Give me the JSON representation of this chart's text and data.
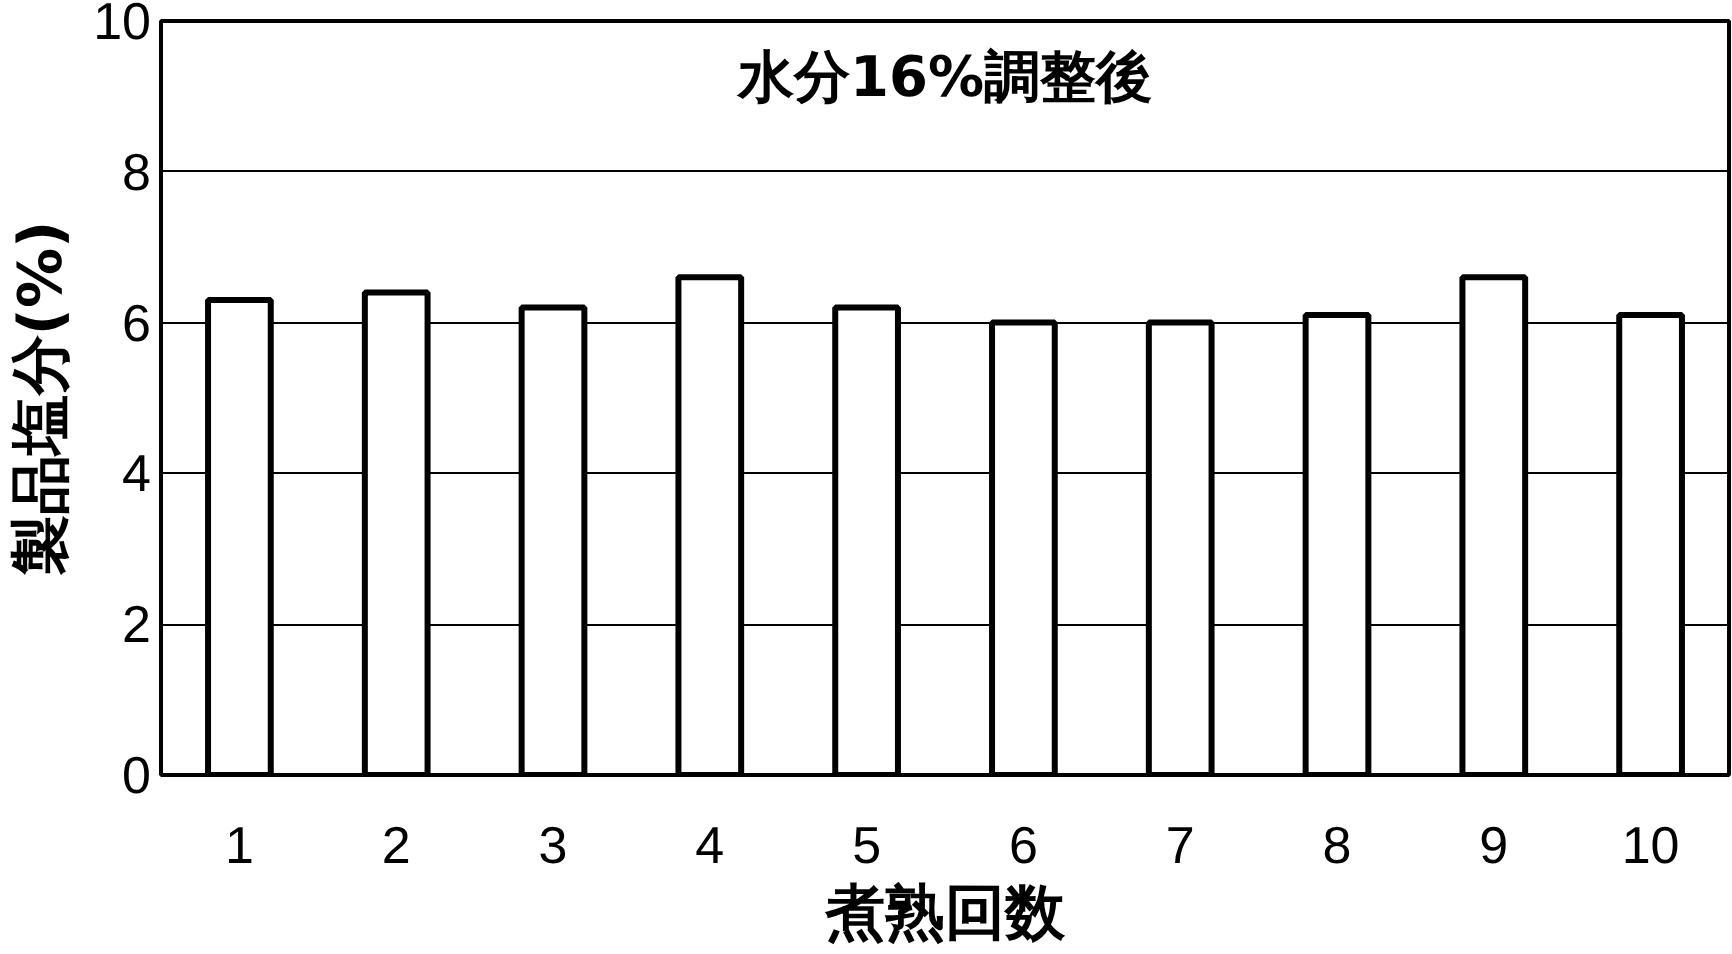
{
  "chart_data": {
    "type": "bar",
    "xlabel": "煮熟回数",
    "ylabel": "製品塩分(%)",
    "annotations": [
      "水分16%調整後"
    ],
    "categories": [
      "1",
      "2",
      "3",
      "4",
      "5",
      "6",
      "7",
      "8",
      "9",
      "10"
    ],
    "series": [
      {
        "color": "#ffffff",
        "values": [
          6.3,
          6.4,
          6.2,
          6.6,
          6.2,
          6.0,
          6.0,
          6.1,
          6.6,
          6.1
        ]
      }
    ],
    "ylim": [
      0,
      10
    ],
    "yticks": [
      0,
      2,
      4,
      6,
      8,
      10
    ],
    "grid": "y"
  }
}
